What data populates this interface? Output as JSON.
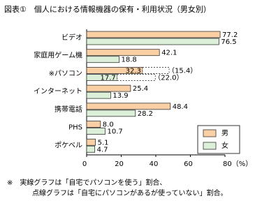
{
  "chart_data": {
    "type": "hbar",
    "title": "図表①　個人における情報機器の保有・利用状況（男女別）",
    "categories": [
      "ビデオ",
      "家庭用ゲーム機",
      "※パソコン",
      "インターネット",
      "携帯電話",
      "PHS",
      "ポケベル"
    ],
    "series": [
      {
        "name": "男",
        "color": "#fbcfa4",
        "values": [
          77.2,
          42.1,
          32.3,
          25.4,
          48.4,
          8.0,
          5.1
        ],
        "value_labels": [
          "77.2",
          "42.1",
          "32.3",
          "25.4",
          "48.4",
          "8.0",
          "5.1"
        ],
        "dashed_values": [
          null,
          null,
          15.4,
          null,
          null,
          null,
          null
        ],
        "dashed_value_labels": [
          null,
          null,
          "（15.4）",
          null,
          null,
          null,
          null
        ]
      },
      {
        "name": "女",
        "color": "#dcefd8",
        "values": [
          76.5,
          18.8,
          17.7,
          13.9,
          28.2,
          10.7,
          4.7
        ],
        "value_labels": [
          "76.5",
          "18.8",
          "17.7",
          "13.9",
          "28.2",
          "10.7",
          "4.7"
        ],
        "dashed_values": [
          null,
          null,
          22.0,
          null,
          null,
          null,
          null
        ],
        "dashed_value_labels": [
          null,
          null,
          "（22.0）",
          null,
          null,
          null,
          null
        ]
      }
    ],
    "xlim": [
      0,
      80
    ],
    "xticks": [
      0,
      20,
      40,
      60,
      {
        "value": 80,
        "label": "80（%）"
      }
    ],
    "legend": "lower-right",
    "notes": [
      "※　実線グラフは「自宅でパソコンを使う」割合、",
      "点線グラフは「自宅にパソコンがあるが使っていない」割合。"
    ]
  }
}
